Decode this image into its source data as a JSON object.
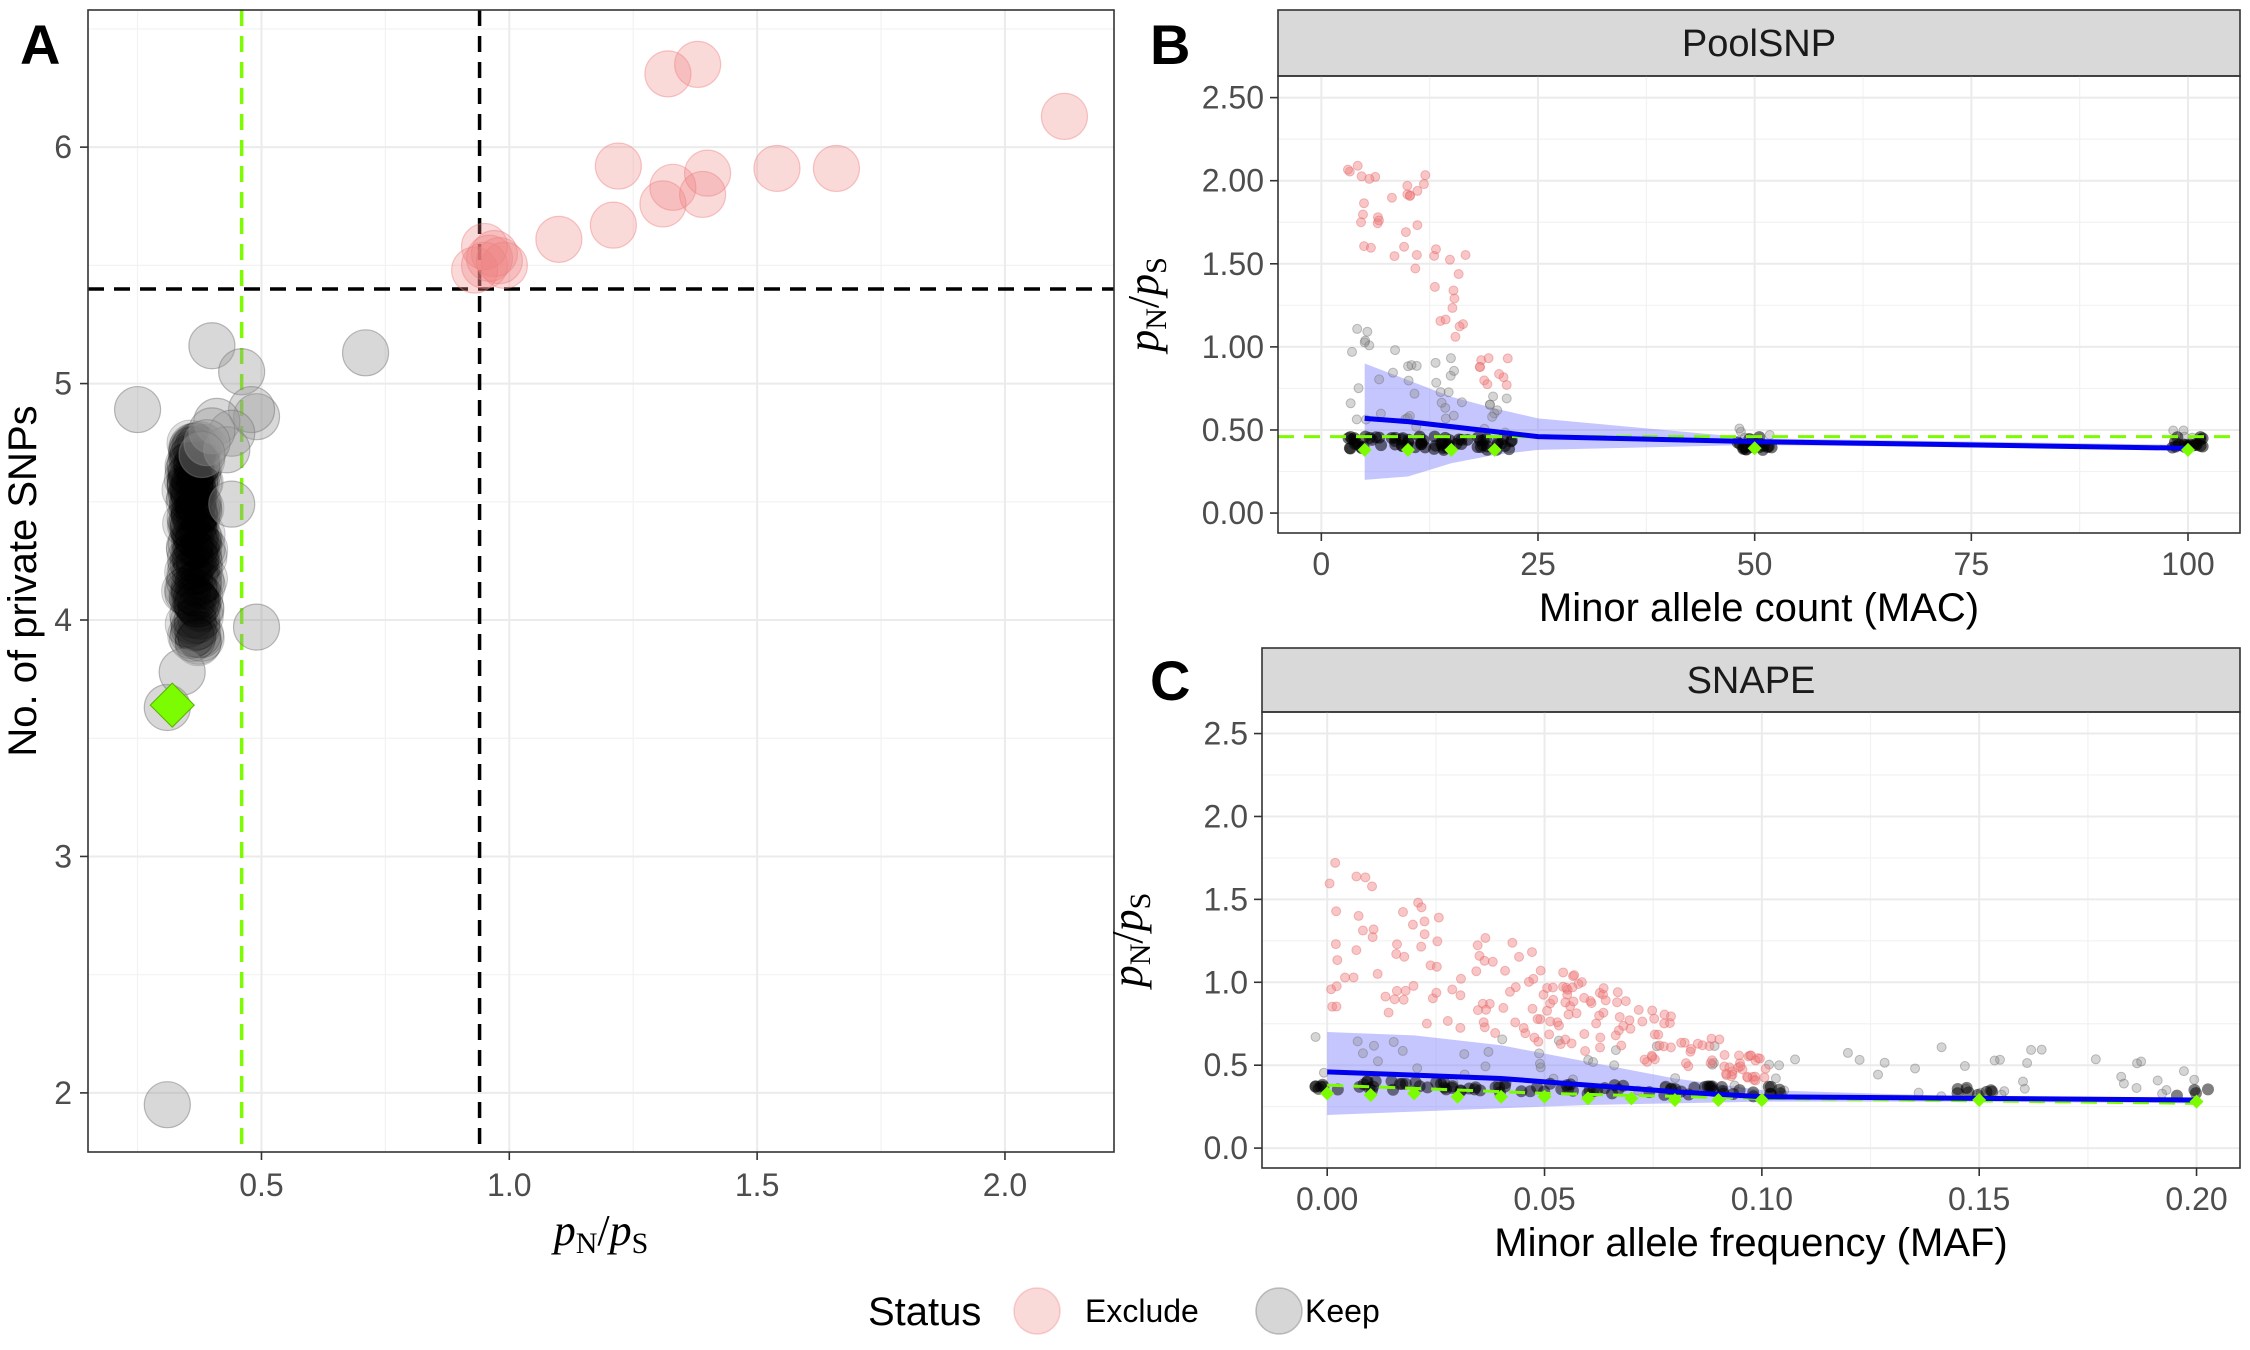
{
  "chart_data": [
    {
      "panel": "A",
      "type": "scatter",
      "xlabel_main": "p",
      "xlabel_sub1": "N",
      "xlabel_sep": "/",
      "xlabel_main2": "p",
      "xlabel_sub2": "S",
      "ylabel": "No. of private SNPs",
      "xlim": [
        0.15,
        2.22
      ],
      "ylim": [
        1.75,
        6.58
      ],
      "xticks": [
        0.5,
        1.0,
        1.5,
        2.0
      ],
      "xtick_labels": [
        "0.5",
        "1.0",
        "1.5",
        "2.0"
      ],
      "yticks": [
        2,
        3,
        4,
        5,
        6
      ],
      "ytick_labels": [
        "2",
        "3",
        "4",
        "5",
        "6"
      ],
      "grid": true,
      "reference_lines": {
        "vertical_black": 0.94,
        "horizontal_black": 5.4,
        "vertical_green": 0.46
      },
      "series": [
        {
          "name": "Exclude",
          "color": "#f08080",
          "points": [
            [
              0.93,
              5.48
            ],
            [
              0.95,
              5.5
            ],
            [
              0.96,
              5.53
            ],
            [
              0.97,
              5.55
            ],
            [
              0.98,
              5.52
            ],
            [
              0.95,
              5.58
            ],
            [
              0.99,
              5.5
            ],
            [
              1.1,
              5.61
            ],
            [
              1.21,
              5.67
            ],
            [
              1.22,
              5.92
            ],
            [
              1.31,
              5.76
            ],
            [
              1.33,
              5.83
            ],
            [
              1.39,
              5.8
            ],
            [
              1.4,
              5.89
            ],
            [
              1.54,
              5.91
            ],
            [
              1.66,
              5.91
            ],
            [
              1.32,
              6.31
            ],
            [
              1.38,
              6.35
            ],
            [
              2.12,
              6.13
            ]
          ]
        },
        {
          "name": "Keep",
          "color": "#999999",
          "points": [
            [
              0.25,
              4.89
            ],
            [
              0.31,
              1.95
            ],
            [
              0.31,
              3.63
            ],
            [
              0.4,
              5.16
            ],
            [
              0.46,
              5.05
            ],
            [
              0.71,
              5.13
            ],
            [
              0.49,
              4.86
            ],
            [
              0.48,
              4.89
            ],
            [
              0.49,
              3.97
            ],
            [
              0.34,
              3.78
            ],
            [
              0.44,
              4.49
            ],
            [
              0.41,
              4.84
            ],
            [
              0.44,
              4.79
            ],
            [
              0.43,
              4.72
            ],
            [
              0.4,
              4.8
            ],
            [
              0.39,
              4.75
            ],
            [
              0.38,
              4.7
            ]
          ]
        }
      ],
      "keep_cluster": {
        "x_center": 0.365,
        "x_spread": 0.03,
        "y_min": 3.9,
        "y_max": 4.75,
        "count": 140
      },
      "highlight": {
        "x": 0.32,
        "y": 3.64,
        "color": "#7cfc00",
        "shape": "diamond"
      }
    },
    {
      "panel": "B",
      "type": "scatter",
      "strip": "PoolSNP",
      "xlabel": "Minor allele count (MAC)",
      "ylabel_main": "p",
      "ylabel_sub1": "N",
      "ylabel_sep": "/",
      "ylabel_main2": "p",
      "ylabel_sub2": "S",
      "xlim": [
        -5,
        106
      ],
      "ylim": [
        -0.12,
        2.63
      ],
      "xticks": [
        0,
        25,
        50,
        75,
        100
      ],
      "xtick_labels": [
        "0",
        "25",
        "50",
        "75",
        "100"
      ],
      "yticks": [
        0,
        0.5,
        1.0,
        1.5,
        2.0,
        2.5
      ],
      "ytick_labels": [
        "0.00",
        "0.50",
        "1.00",
        "1.50",
        "2.00",
        "2.50"
      ],
      "green_hline": 0.46,
      "black_cluster_x": [
        5,
        10,
        15,
        20,
        50,
        100
      ],
      "black_cluster_y": 0.42,
      "green_diamonds": [
        [
          5,
          0.38
        ],
        [
          10,
          0.38
        ],
        [
          15,
          0.38
        ],
        [
          20,
          0.38
        ],
        [
          50,
          0.39
        ],
        [
          100,
          0.38
        ]
      ],
      "fit_line": [
        [
          5,
          0.57
        ],
        [
          10,
          0.55
        ],
        [
          15,
          0.52
        ],
        [
          20,
          0.49
        ],
        [
          25,
          0.46
        ],
        [
          50,
          0.43
        ],
        [
          100,
          0.39
        ]
      ],
      "ribbon_upper": [
        [
          5,
          0.9
        ],
        [
          10,
          0.8
        ],
        [
          15,
          0.7
        ],
        [
          20,
          0.63
        ],
        [
          25,
          0.57
        ],
        [
          50,
          0.45
        ],
        [
          100,
          0.41
        ]
      ],
      "ribbon_lower": [
        [
          5,
          0.2
        ],
        [
          10,
          0.22
        ],
        [
          15,
          0.3
        ],
        [
          20,
          0.35
        ],
        [
          25,
          0.38
        ],
        [
          50,
          0.41
        ],
        [
          100,
          0.38
        ]
      ],
      "red_cloud": [
        {
          "x": 5,
          "y_min": 1.55,
          "y_max": 2.1,
          "n": 14
        },
        {
          "x": 10,
          "y_min": 1.45,
          "y_max": 2.05,
          "n": 14
        },
        {
          "x": 15,
          "y_min": 1.05,
          "y_max": 1.6,
          "n": 14
        },
        {
          "x": 20,
          "y_min": 0.75,
          "y_max": 0.95,
          "n": 10
        }
      ],
      "gray_cloud": [
        {
          "x": 5,
          "y_min": 0.45,
          "y_max": 1.2,
          "n": 12
        },
        {
          "x": 10,
          "y_min": 0.45,
          "y_max": 1.05,
          "n": 12
        },
        {
          "x": 15,
          "y_min": 0.45,
          "y_max": 0.95,
          "n": 12
        },
        {
          "x": 20,
          "y_min": 0.45,
          "y_max": 0.75,
          "n": 10
        },
        {
          "x": 50,
          "y_min": 0.4,
          "y_max": 0.58,
          "n": 4
        },
        {
          "x": 100,
          "y_min": 0.38,
          "y_max": 0.55,
          "n": 4
        }
      ]
    },
    {
      "panel": "C",
      "type": "scatter",
      "strip": "SNAPE",
      "xlabel": "Minor allele frequency (MAF)",
      "ylabel_main": "p",
      "ylabel_sub1": "N",
      "ylabel_sep": "/",
      "ylabel_main2": "p",
      "ylabel_sub2": "S",
      "xlim": [
        -0.015,
        0.21
      ],
      "ylim": [
        -0.12,
        2.63
      ],
      "xticks": [
        0,
        0.05,
        0.1,
        0.15,
        0.2
      ],
      "xtick_labels": [
        "0.00",
        "0.05",
        "0.10",
        "0.15",
        "0.20"
      ],
      "yticks": [
        0,
        0.5,
        1.0,
        1.5,
        2.0,
        2.5
      ],
      "ytick_labels": [
        "0.0",
        "0.5",
        "1.0",
        "1.5",
        "2.0",
        "2.5"
      ],
      "green_hline_points": [
        [
          0,
          0.38
        ],
        [
          0.05,
          0.33
        ],
        [
          0.1,
          0.3
        ],
        [
          0.2,
          0.27
        ]
      ],
      "black_cluster_y": [
        [
          0,
          0.38
        ],
        [
          0.02,
          0.36
        ],
        [
          0.05,
          0.33
        ],
        [
          0.08,
          0.31
        ],
        [
          0.1,
          0.3
        ],
        [
          0.15,
          0.29
        ],
        [
          0.2,
          0.28
        ]
      ],
      "green_diamonds": [
        [
          0.0,
          0.33
        ],
        [
          0.01,
          0.32
        ],
        [
          0.02,
          0.33
        ],
        [
          0.03,
          0.31
        ],
        [
          0.04,
          0.31
        ],
        [
          0.05,
          0.31
        ],
        [
          0.06,
          0.3
        ],
        [
          0.07,
          0.3
        ],
        [
          0.08,
          0.29
        ],
        [
          0.09,
          0.29
        ],
        [
          0.1,
          0.29
        ],
        [
          0.15,
          0.29
        ],
        [
          0.2,
          0.28
        ]
      ],
      "fit_line": [
        [
          0,
          0.46
        ],
        [
          0.02,
          0.44
        ],
        [
          0.04,
          0.42
        ],
        [
          0.06,
          0.38
        ],
        [
          0.08,
          0.34
        ],
        [
          0.1,
          0.31
        ],
        [
          0.15,
          0.3
        ],
        [
          0.2,
          0.29
        ]
      ],
      "ribbon_upper": [
        [
          0,
          0.7
        ],
        [
          0.02,
          0.68
        ],
        [
          0.04,
          0.62
        ],
        [
          0.06,
          0.52
        ],
        [
          0.08,
          0.42
        ],
        [
          0.1,
          0.35
        ],
        [
          0.15,
          0.31
        ],
        [
          0.2,
          0.3
        ]
      ],
      "ribbon_lower": [
        [
          0,
          0.2
        ],
        [
          0.02,
          0.22
        ],
        [
          0.04,
          0.24
        ],
        [
          0.06,
          0.26
        ],
        [
          0.08,
          0.27
        ],
        [
          0.1,
          0.28
        ],
        [
          0.15,
          0.28
        ],
        [
          0.2,
          0.27
        ]
      ],
      "red_cloud_seed": 7,
      "red_cloud_bounds": {
        "x_min": 0.0,
        "x_max": 0.102,
        "n": 190
      },
      "gray_cloud_bounds": {
        "x_min": -0.003,
        "x_max": 0.203,
        "n": 70
      }
    }
  ],
  "panel_tags": {
    "a": "A",
    "b": "B",
    "c": "C"
  },
  "strips": {
    "b": "PoolSNP",
    "c": "SNAPE"
  },
  "legend": {
    "title": "Status",
    "items": [
      {
        "label": "Exclude",
        "color": "#f08080"
      },
      {
        "label": "Keep",
        "color": "#999999"
      }
    ]
  },
  "colors": {
    "exclude": "#f08080",
    "keep": "#7f7f7f",
    "black": "#000000",
    "green": "#7cfc00",
    "fit": "#0000ee",
    "ribbon": "#8080ff",
    "grid": "#ebebeb",
    "strip_bg": "#d9d9d9"
  }
}
